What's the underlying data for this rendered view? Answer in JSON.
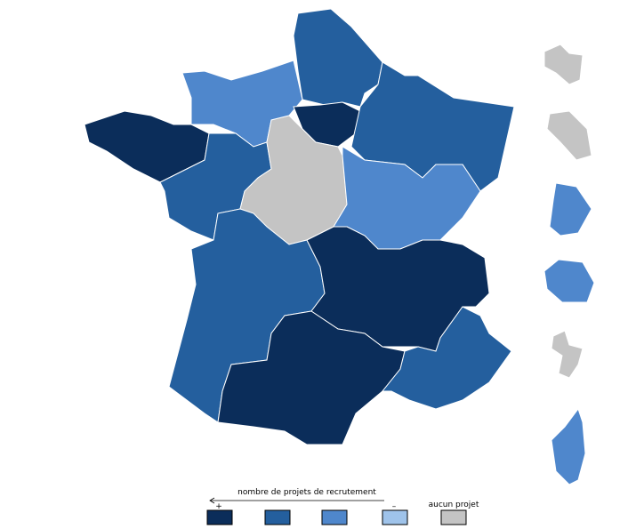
{
  "legend": {
    "title": "nombre de projets de recrutement",
    "more": "+",
    "less": "–",
    "none": "aucun projet",
    "colors": [
      "#0b2d5a",
      "#245f9e",
      "#4f87cc",
      "#9fc3ea",
      "#c4c4c4"
    ]
  }
}
